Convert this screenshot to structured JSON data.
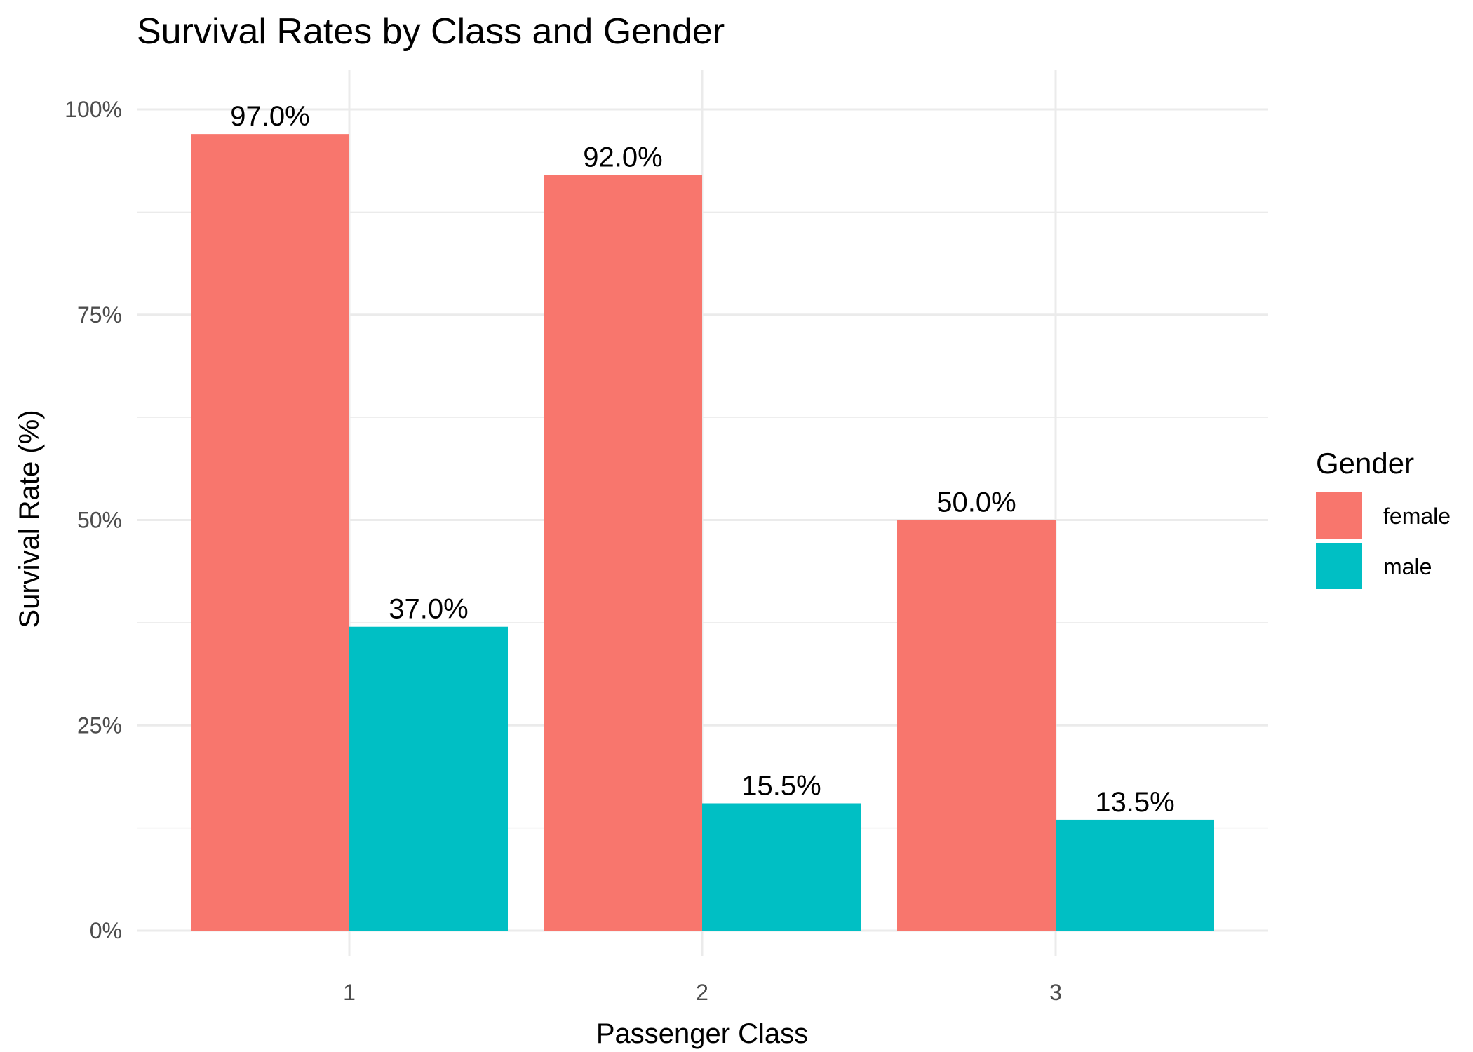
{
  "chart_data": {
    "type": "bar",
    "title": "Survival Rates by Class and Gender",
    "xlabel": "Passenger Class",
    "ylabel": "Survival Rate (%)",
    "categories": [
      "1",
      "2",
      "3"
    ],
    "ylim": [
      0,
      1
    ],
    "yticks": [
      0,
      0.25,
      0.5,
      0.75,
      1
    ],
    "ytick_labels": [
      "0%",
      "25%",
      "50%",
      "75%",
      "100%"
    ],
    "grid": true,
    "legend": {
      "title": "Gender",
      "position": "right"
    },
    "series": [
      {
        "name": "female",
        "color": "#F8766D",
        "values": [
          0.97,
          0.92,
          0.5
        ],
        "labels": [
          "97.0%",
          "92.0%",
          "50.0%"
        ]
      },
      {
        "name": "male",
        "color": "#00BFC4",
        "values": [
          0.37,
          0.155,
          0.135
        ],
        "labels": [
          "37.0%",
          "15.5%",
          "13.5%"
        ]
      }
    ]
  }
}
